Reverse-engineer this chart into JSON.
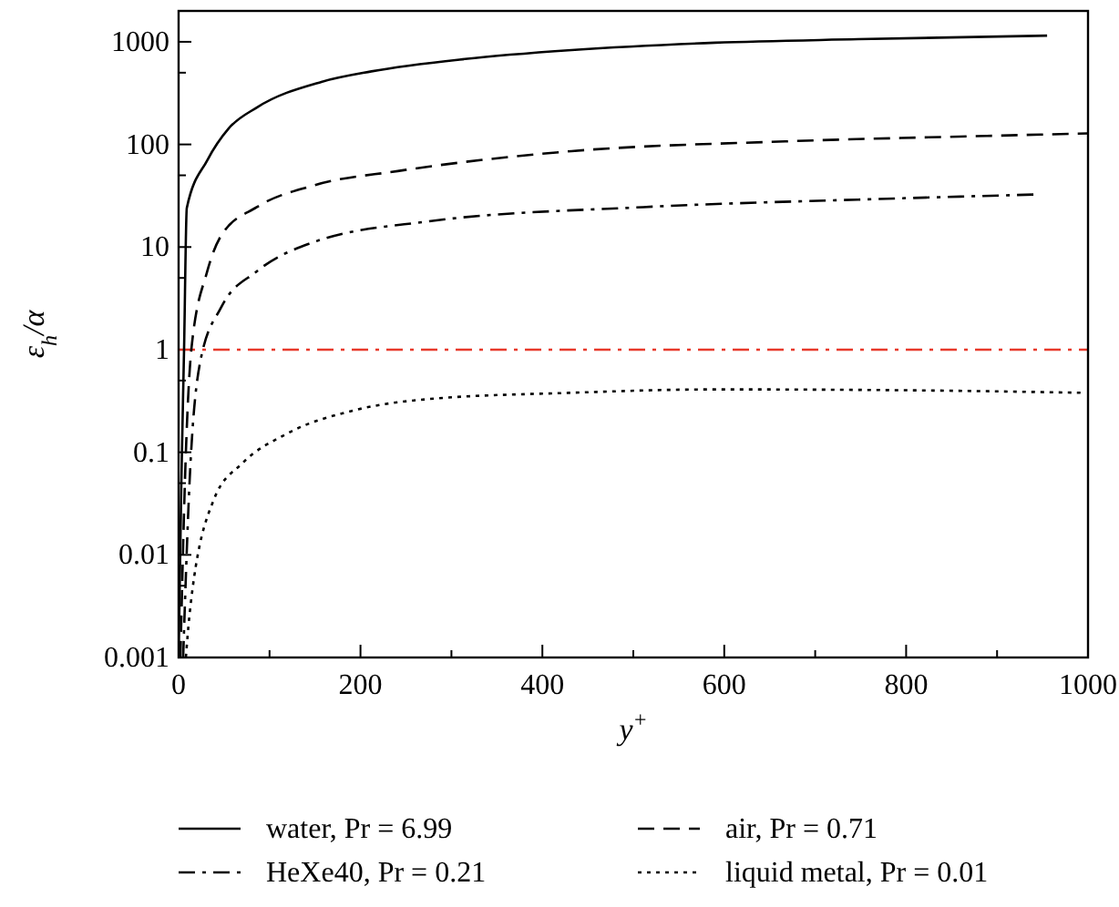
{
  "chart_data": {
    "type": "line",
    "xlabel": "y$^{+}$",
    "ylabel": "ε$_{h}$/α",
    "log": "y",
    "grid": false,
    "legend": "bottom",
    "marker": "none",
    "xlim": [
      0,
      1000
    ],
    "xticks": [
      0,
      {
        "value": 100,
        "label": null
      },
      200,
      {
        "value": 300,
        "label": null
      },
      400,
      {
        "value": 500,
        "label": null
      },
      600,
      {
        "value": 700,
        "label": null
      },
      800,
      {
        "value": 900,
        "label": null
      },
      1000
    ],
    "ylim": [
      0.001,
      2000
    ],
    "yticks": [
      0.001,
      {
        "value": 0.005,
        "label": null
      },
      0.01,
      {
        "value": 0.05,
        "label": null
      },
      0.1,
      {
        "value": 0.5,
        "label": null
      },
      1,
      {
        "value": 5,
        "label": null
      },
      10,
      {
        "value": 50,
        "label": null
      },
      100,
      {
        "value": 500,
        "label": null
      },
      1000
    ],
    "ref_lines": [
      {
        "axis": "y",
        "value": 1,
        "color": "#e8392b",
        "line_style": "dashdot"
      }
    ],
    "series": [
      {
        "name": "water, Pr = 6.99",
        "color": "#000000",
        "line_style": "solid",
        "x": [
          0,
          3,
          6,
          9,
          31.5,
          55,
          86,
          157,
          212,
          315,
          432,
          590,
          747,
          955
        ],
        "values": [
          0.001,
          0.05,
          1,
          24,
          70,
          143,
          229,
          407,
          515,
          680,
          830,
          980,
          1060,
          1150
        ]
      },
      {
        "name": "air, Pr = 0.71",
        "color": "#000000",
        "line_style": "dashed",
        "x": [
          2,
          8,
          14,
          31.5,
          47,
          86,
          149,
          241,
          432,
          667,
          904,
          1000
        ],
        "values": [
          0.001,
          0.1,
          1,
          5.8,
          13,
          24.5,
          40,
          55,
          86,
          107,
          122,
          128
        ]
      },
      {
        "name": "HeXe40, Pr = 0.21",
        "color": "#000000",
        "line_style": "dashdot",
        "x": [
          5,
          12,
          24,
          47,
          86,
          149,
          275,
          511,
          747,
          942
        ],
        "values": [
          0.001,
          0.05,
          0.78,
          2.6,
          5.8,
          11.2,
          17.8,
          24.5,
          29,
          32.5
        ]
      },
      {
        "name": "liquid metal, Pr = 0.01",
        "color": "#000000",
        "line_style": "dotted",
        "x": [
          8,
          12,
          39,
          70,
          118,
          196,
          275,
          432,
          590,
          826,
          994
        ],
        "values": [
          0.001,
          0.0026,
          0.035,
          0.078,
          0.15,
          0.26,
          0.33,
          0.38,
          0.41,
          0.4,
          0.38
        ]
      }
    ]
  }
}
